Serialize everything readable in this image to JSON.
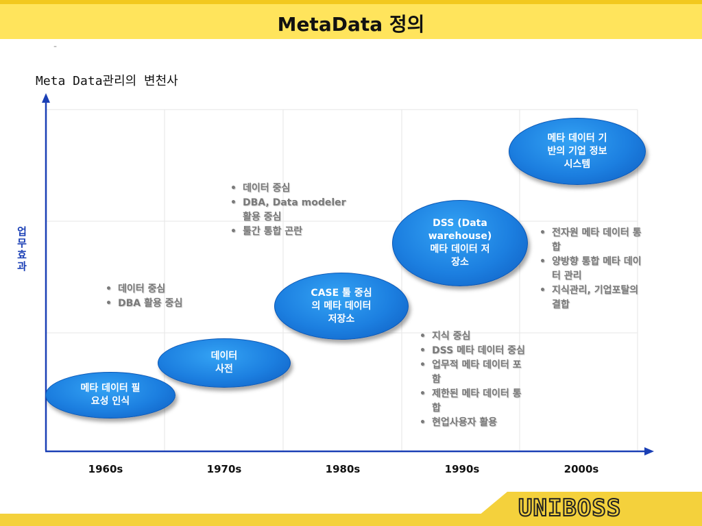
{
  "header": {
    "title": "MetaData 정의",
    "dash": "-"
  },
  "diagram": {
    "subtitle": "Meta Data관리의 변천사",
    "y_label_chars": [
      "업",
      "무",
      "효",
      "과"
    ],
    "x_labels": [
      "1960s",
      "1970s",
      "1980s",
      "1990s",
      "2000s"
    ],
    "ellipses": {
      "e1960": [
        "메타 데이터 필",
        "요성 인식"
      ],
      "e1970": [
        "데이터",
        "사전"
      ],
      "e1980": {
        "bold": "CASE",
        "rest": " 툴 중심",
        "line2": "의 메타 데이터",
        "line3": "저장소"
      },
      "e1990": [
        "DSS (Data",
        "warehouse)",
        "메타 데이터 저",
        "장소"
      ],
      "e2000": [
        "메타 데이터 기",
        "반의 기업 정보",
        "시스템"
      ]
    },
    "bullets_1960": [
      "데이터 중심",
      "DBA 활용 중심"
    ],
    "bullets_1970": [
      "데이터 중심",
      "DBA, Data modeler",
      "활용 중심",
      "툴간 통합 곤란"
    ],
    "bullets_1980": [
      "지식 중심",
      "DSS 메타 데이터 중심",
      "업무적 메타 데이터 포",
      "함",
      "제한된 메타 데이터 통",
      "합",
      "현업사용자 활용"
    ],
    "bullets_2000": [
      "전자원 메타 데이터 통",
      "합",
      "양방향 통합 메타 데이",
      "터 관리",
      "지식관리, 기업포탈의",
      "결합"
    ]
  },
  "footer": {
    "logo": "UNIBOSS"
  },
  "colors": {
    "accent_blue": "#1C7FE0",
    "axis_blue": "#1A3FB5",
    "header_yellow": "#FFE45C"
  }
}
